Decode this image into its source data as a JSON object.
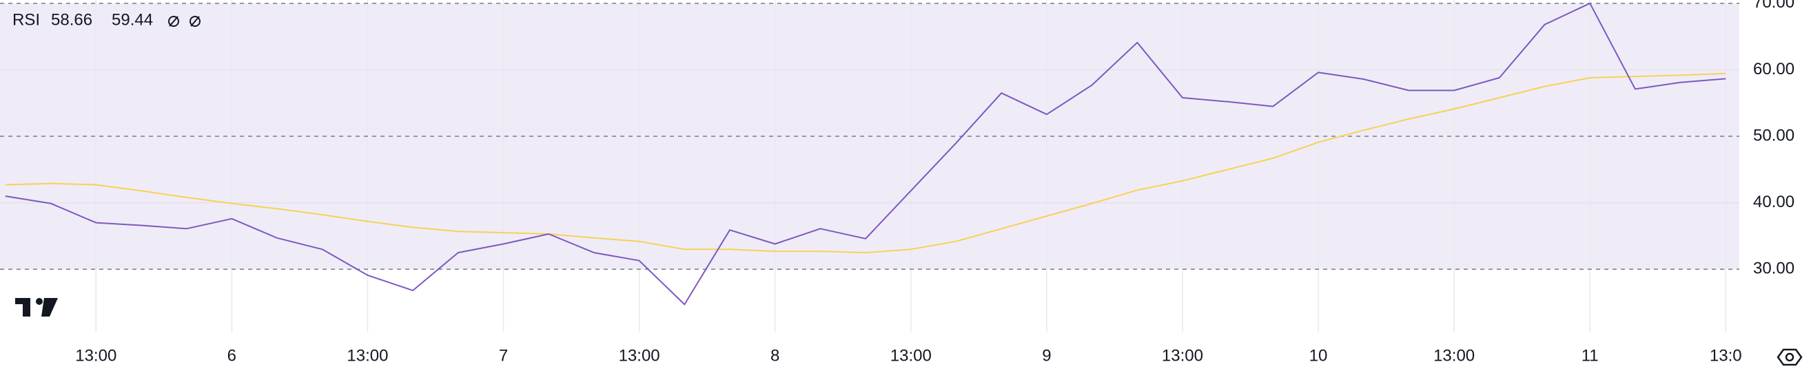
{
  "chart_data": {
    "type": "line",
    "legend_title": "RSI",
    "xlim": [
      -0.12,
      38.3
    ],
    "xticks": [
      {
        "value": 2,
        "label": "13:00"
      },
      {
        "value": 5,
        "label": "6"
      },
      {
        "value": 8,
        "label": "13:00"
      },
      {
        "value": 11,
        "label": "7"
      },
      {
        "value": 14,
        "label": "13:00"
      },
      {
        "value": 17,
        "label": "8"
      },
      {
        "value": 20,
        "label": "13:00"
      },
      {
        "value": 23,
        "label": "9"
      },
      {
        "value": 26,
        "label": "13:00"
      },
      {
        "value": 29,
        "label": "10"
      },
      {
        "value": 32,
        "label": "13:00"
      },
      {
        "value": 35,
        "label": "11"
      },
      {
        "value": 38,
        "label": "13:0"
      }
    ],
    "ylim": [
      20.5,
      70.5
    ],
    "yticks": [
      {
        "value": 30,
        "label": "30.00"
      },
      {
        "value": 40,
        "label": "40.00"
      },
      {
        "value": 50,
        "label": "50.00"
      },
      {
        "value": 60,
        "label": "60.00"
      },
      {
        "value": 70,
        "label": "70.00"
      }
    ],
    "band": [
      30,
      70
    ],
    "band_color": "#efecf7",
    "dashed_levels": [
      30,
      50,
      70
    ],
    "grid": true,
    "series": [
      {
        "color": "#7e57c2",
        "values": [
          41.0,
          39.9,
          37.0,
          36.6,
          36.1,
          37.6,
          34.7,
          33.0,
          29.1,
          26.8,
          32.5,
          33.8,
          35.3,
          32.5,
          31.3,
          24.7,
          35.9,
          33.8,
          36.1,
          34.6,
          41.8,
          49.0,
          56.5,
          53.3,
          57.7,
          64.1,
          55.8,
          55.2,
          54.5,
          59.6,
          58.6,
          56.9,
          56.9,
          58.8,
          66.8,
          70.0,
          57.1,
          58.1,
          58.66
        ]
      },
      {
        "color": "#f7d154",
        "values": [
          42.7,
          42.9,
          42.7,
          41.8,
          40.8,
          39.9,
          39.1,
          38.2,
          37.2,
          36.3,
          35.7,
          35.5,
          35.3,
          34.7,
          34.2,
          33.0,
          33.0,
          32.7,
          32.7,
          32.5,
          33.0,
          34.2,
          36.1,
          38.0,
          39.9,
          41.9,
          43.3,
          45.0,
          46.7,
          49.1,
          50.9,
          52.6,
          54.1,
          55.8,
          57.5,
          58.8,
          59.0,
          59.2,
          59.44
        ]
      }
    ]
  }
}
